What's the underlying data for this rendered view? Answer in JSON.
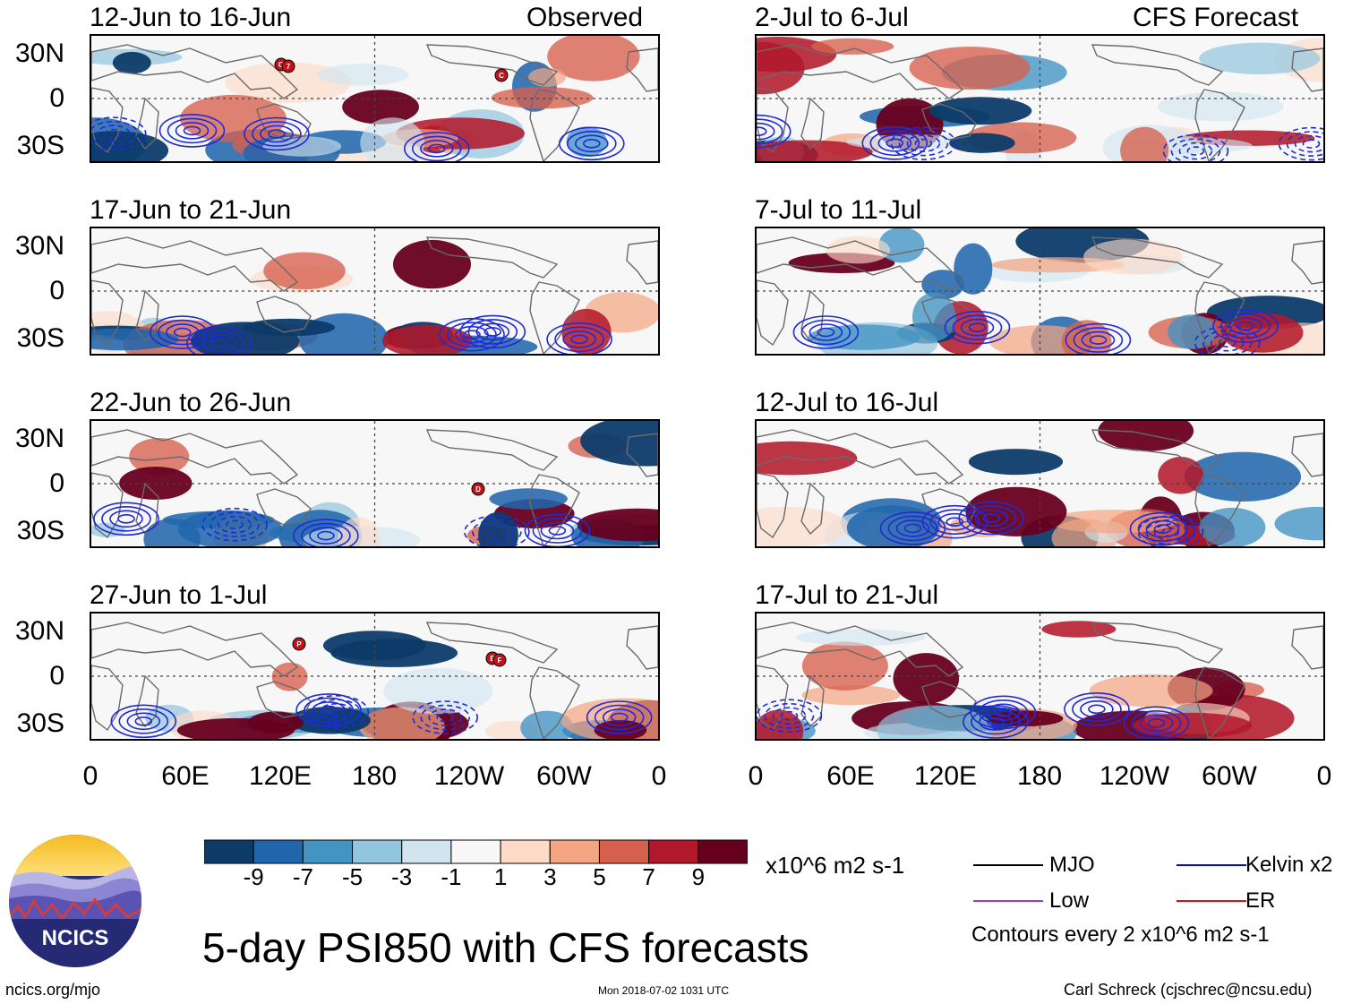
{
  "figure": {
    "title": "5-day PSI850 with CFS forecasts",
    "left_column_label": "Observed",
    "right_column_label": "CFS Forecast",
    "units": "x10^6 m2 s-1",
    "timestamp": "Mon 2018-07-02 1031 UTC",
    "site": "ncics.org/mjo",
    "author": "Carl Schreck (cjschrec@ncsu.edu)",
    "logo_text": "NCICS"
  },
  "panels": [
    {
      "title": "12-Jun to 16-Jun",
      "column": "observed"
    },
    {
      "title": "17-Jun to 21-Jun",
      "column": "observed"
    },
    {
      "title": "22-Jun to 26-Jun",
      "column": "observed"
    },
    {
      "title": "27-Jun to 1-Jul",
      "column": "observed"
    },
    {
      "title": "2-Jul to 6-Jul",
      "column": "forecast"
    },
    {
      "title": "7-Jul to 11-Jul",
      "column": "forecast"
    },
    {
      "title": "12-Jul to 16-Jul",
      "column": "forecast"
    },
    {
      "title": "17-Jul to 21-Jul",
      "column": "forecast"
    }
  ],
  "axes": {
    "lat_labels": [
      "30N",
      "0",
      "30S"
    ],
    "lon_labels": [
      "0",
      "60E",
      "120E",
      "180",
      "120W",
      "60W",
      "0"
    ],
    "lat_range": [
      -40,
      40
    ],
    "lon_range": [
      0,
      360
    ]
  },
  "colorbar": {
    "labels": [
      "-9",
      "-7",
      "-5",
      "-3",
      "-1",
      "1",
      "3",
      "5",
      "7",
      "9"
    ],
    "colors": [
      "#0c3b69",
      "#2166ac",
      "#4393c3",
      "#92c5de",
      "#d1e5f0",
      "#f7f7f7",
      "#fddbc7",
      "#f4a582",
      "#d6604d",
      "#b2182b",
      "#67001f"
    ]
  },
  "legend": {
    "items": [
      {
        "label": "MJO",
        "color": "#000000"
      },
      {
        "label": "Kelvin x2",
        "color": "#0000ff"
      },
      {
        "label": "Low",
        "color": "#9933ff"
      },
      {
        "label": "ER",
        "color": "#ff0000"
      }
    ],
    "note": "Contours every 2 x10^6 m2 s-1"
  },
  "storm_markers": [
    {
      "panel": 0,
      "labels": [
        "G",
        "7"
      ]
    },
    {
      "panel": 0,
      "labels": [
        "C"
      ]
    },
    {
      "panel": 2,
      "labels": [
        "D"
      ]
    },
    {
      "panel": 3,
      "labels": [
        "P"
      ]
    },
    {
      "panel": 3,
      "labels": [
        "E",
        "F"
      ]
    }
  ]
}
